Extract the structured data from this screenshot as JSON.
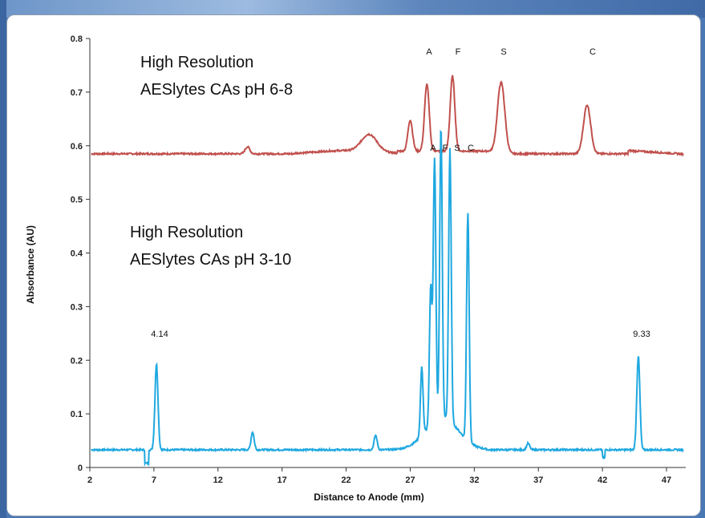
{
  "chart_data": {
    "type": "line",
    "xlabel": "Distance to Anode (mm)",
    "ylabel": "Absorbance (AU)",
    "xlim": [
      2,
      48.5
    ],
    "ylim": [
      0,
      0.8
    ],
    "x_ticks": [
      "2",
      "7",
      "12",
      "17",
      "22",
      "27",
      "32",
      "37",
      "42",
      "47"
    ],
    "y_ticks": [
      "0",
      "0.1",
      "0.2",
      "0.3",
      "0.4",
      "0.5",
      "0.6",
      "0.7",
      "0.8"
    ],
    "grid": false,
    "legend": "none",
    "annotations": {
      "top_label_line1": "High Resolution",
      "top_label_line2": "AESlytes CAs pH 6-8",
      "bottom_label_line1": "High Resolution",
      "bottom_label_line2": "AESlytes CAs pH 3-10"
    },
    "series": [
      {
        "color": "#c0504d",
        "baseline": 0.585,
        "peak_labels": [
          "A",
          "F",
          "S",
          "C"
        ],
        "peaks": [
          {
            "x": 14.3,
            "y": 0.598
          },
          {
            "x": 23.8,
            "y": 0.617
          },
          {
            "x": 27.0,
            "y": 0.643
          },
          {
            "x": 28.3,
            "y": 0.71
          },
          {
            "x": 30.3,
            "y": 0.725
          },
          {
            "x": 34.1,
            "y": 0.718
          },
          {
            "x": 40.8,
            "y": 0.676
          }
        ]
      },
      {
        "color": "#1fa8e0",
        "baseline": 0.033,
        "peak_labels": [
          "A",
          "F",
          "S",
          "C"
        ],
        "marker_labels": [
          "4.14",
          "9.33"
        ],
        "peaks": [
          {
            "x": 7.2,
            "y": 0.193
          },
          {
            "x": 14.7,
            "y": 0.066
          },
          {
            "x": 24.3,
            "y": 0.06
          },
          {
            "x": 27.9,
            "y": 0.16
          },
          {
            "x": 28.6,
            "y": 0.29
          },
          {
            "x": 28.9,
            "y": 0.522
          },
          {
            "x": 29.4,
            "y": 0.576
          },
          {
            "x": 30.1,
            "y": 0.542
          },
          {
            "x": 31.5,
            "y": 0.458
          },
          {
            "x": 36.2,
            "y": 0.045
          },
          {
            "x": 44.8,
            "y": 0.208
          }
        ]
      }
    ]
  }
}
